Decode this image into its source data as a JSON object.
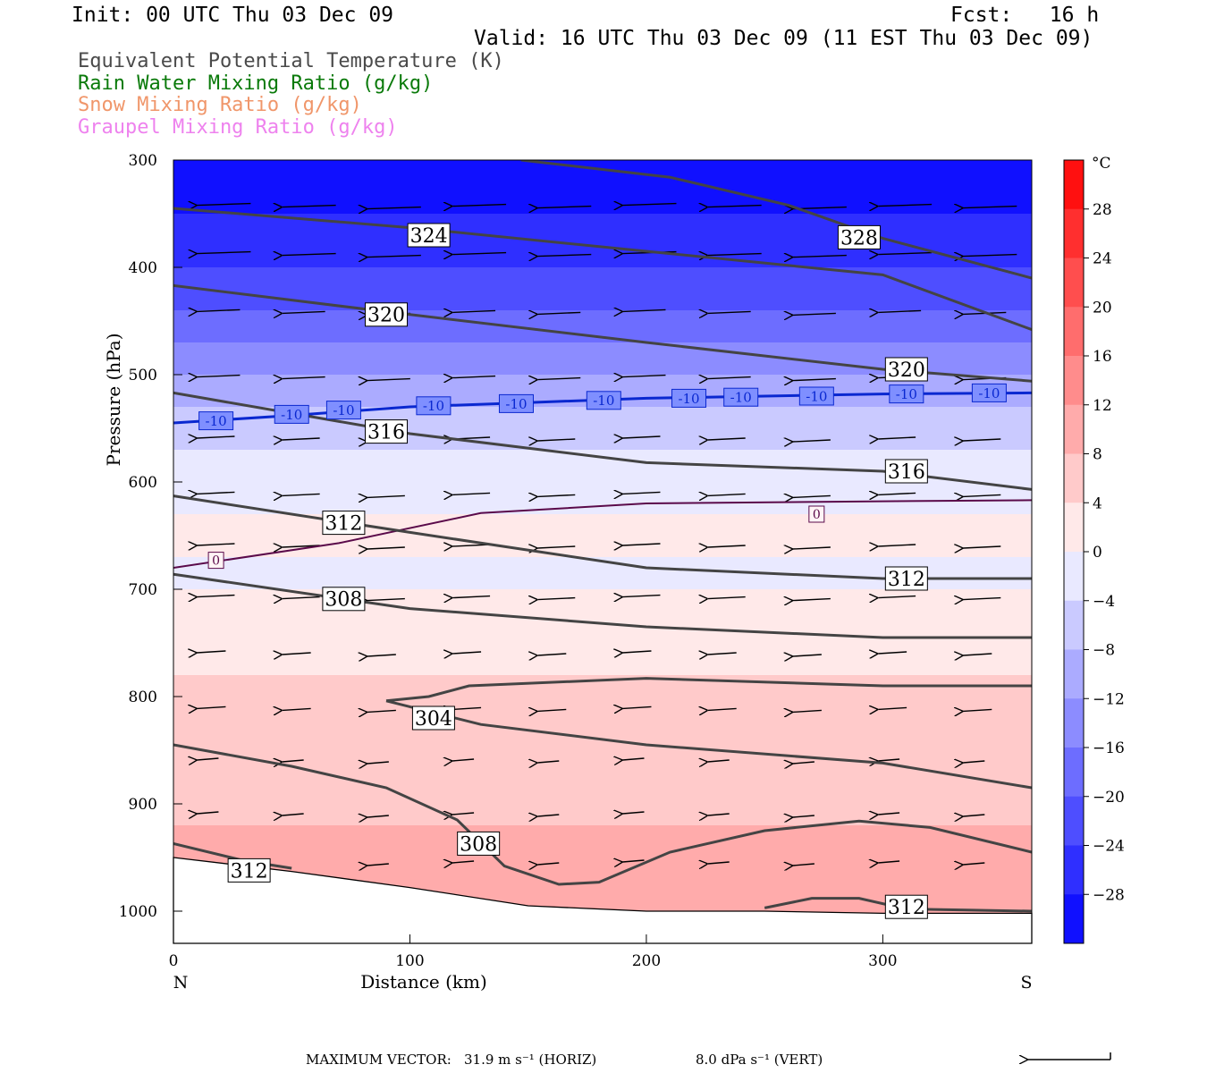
{
  "header": {
    "init": "Init: 00 UTC Thu 03 Dec 09",
    "fcst": "Fcst:   16 h",
    "valid": "Valid: 16 UTC Thu 03 Dec 09 (11 EST Thu 03 Dec 09)"
  },
  "legend": [
    {
      "label": "Equivalent Potential Temperature (K)",
      "color": "#4a4a4a"
    },
    {
      "label": "Rain Water Mixing Ratio (g/kg)",
      "color": "#0a7a0a"
    },
    {
      "label": "Snow Mixing Ratio (g/kg)",
      "color": "#f0966a"
    },
    {
      "label": "Graupel Mixing Ratio (g/kg)",
      "color": "#ee82ee"
    }
  ],
  "footer": {
    "label": "MAXIMUM VECTOR:",
    "horiz": "31.9 m s⁻¹ (HORIZ)",
    "vert": "8.0 dPa s⁻¹ (VERT)"
  },
  "chart_data": {
    "type": "heatmap",
    "xlabel": "Distance (km)",
    "ylabel": "Pressure (hPa)",
    "x_ticks": [
      0,
      100,
      200,
      300
    ],
    "y_ticks": [
      300,
      400,
      500,
      600,
      700,
      800,
      900,
      1000
    ],
    "xlim": [
      0,
      363
    ],
    "ylim": [
      300,
      1030
    ],
    "x_end_labels": {
      "left": "N",
      "right": "S"
    },
    "colorbar": {
      "unit": "°C",
      "ticks": [
        28,
        24,
        20,
        16,
        12,
        8,
        4,
        0,
        -4,
        -8,
        -12,
        -16,
        -20,
        -24,
        -28
      ],
      "range": [
        -32,
        32
      ]
    },
    "temperature_profile_c": {
      "pressures": [
        300,
        350,
        400,
        450,
        500,
        550,
        600,
        650,
        700,
        750,
        800,
        850,
        900,
        950,
        1000
      ],
      "values": [
        -33,
        -30,
        -26,
        -21,
        -14,
        -8,
        -4,
        -1,
        2,
        5,
        6.5,
        7.5,
        9,
        11.5,
        13.5
      ]
    },
    "theta_e_contours": [
      {
        "label": "328",
        "points": [
          [
            147,
            300
          ],
          [
            210,
            316
          ],
          [
            260,
            342
          ],
          [
            300,
            373
          ],
          [
            363,
            410
          ]
        ],
        "label_at": [
          290,
          372
        ]
      },
      {
        "label": "324",
        "points": [
          [
            0,
            345
          ],
          [
            100,
            363
          ],
          [
            200,
            385
          ],
          [
            300,
            407
          ],
          [
            363,
            458
          ]
        ],
        "label_at": [
          108,
          370
        ]
      },
      {
        "label": "320",
        "points": [
          [
            0,
            417
          ],
          [
            100,
            444
          ],
          [
            200,
            470
          ],
          [
            300,
            495
          ],
          [
            363,
            506
          ]
        ],
        "label_at": [
          90,
          444
        ]
      },
      {
        "label": "320",
        "points": [],
        "label_at": [
          310,
          495
        ]
      },
      {
        "label": "316",
        "points": [
          [
            0,
            517
          ],
          [
            100,
            555
          ],
          [
            200,
            582
          ],
          [
            300,
            590
          ],
          [
            363,
            607
          ]
        ],
        "label_at": [
          90,
          553
        ]
      },
      {
        "label": "316",
        "points": [],
        "label_at": [
          310,
          590
        ]
      },
      {
        "label": "312",
        "points": [
          [
            0,
            613
          ],
          [
            100,
            647
          ],
          [
            200,
            680
          ],
          [
            300,
            690
          ],
          [
            363,
            690
          ]
        ],
        "label_at": [
          72,
          638
        ]
      },
      {
        "label": "312",
        "points": [],
        "label_at": [
          310,
          690
        ]
      },
      {
        "label": "308",
        "points": [
          [
            0,
            686
          ],
          [
            100,
            718
          ],
          [
            200,
            735
          ],
          [
            300,
            745
          ],
          [
            363,
            745
          ]
        ],
        "label_at": [
          72,
          709
        ]
      },
      {
        "label": "304",
        "points": [
          [
            90,
            804
          ],
          [
            108,
            800
          ],
          [
            125,
            790
          ],
          [
            200,
            783
          ],
          [
            300,
            790
          ],
          [
            363,
            790
          ]
        ],
        "label_at": [
          110,
          820
        ]
      },
      {
        "label": "304",
        "points": [
          [
            90,
            804
          ],
          [
            130,
            826
          ],
          [
            200,
            845
          ],
          [
            300,
            862
          ],
          [
            363,
            885
          ]
        ],
        "label_at": [
          110,
          820
        ]
      },
      {
        "label": "308",
        "points": [
          [
            0,
            845
          ],
          [
            50,
            865
          ],
          [
            90,
            885
          ],
          [
            120,
            915
          ],
          [
            140,
            958
          ],
          [
            163,
            975
          ],
          [
            180,
            973
          ],
          [
            210,
            945
          ],
          [
            250,
            925
          ],
          [
            290,
            916
          ],
          [
            320,
            922
          ],
          [
            363,
            945
          ]
        ],
        "label_at": [
          129,
          937
        ]
      },
      {
        "label": "312",
        "points": [
          [
            0,
            937
          ],
          [
            30,
            953
          ],
          [
            50,
            960
          ]
        ],
        "label_at": [
          32,
          962
        ]
      },
      {
        "label": "312",
        "points": [
          [
            250,
            997
          ],
          [
            270,
            988
          ],
          [
            290,
            988
          ],
          [
            310,
            998
          ],
          [
            363,
            1000
          ]
        ],
        "label_at": [
          310,
          996
        ]
      }
    ],
    "zero_isotherm": {
      "label": "0",
      "points": [
        [
          0,
          680
        ],
        [
          70,
          657
        ],
        [
          130,
          629
        ],
        [
          200,
          620
        ],
        [
          300,
          618
        ],
        [
          363,
          617
        ]
      ],
      "label_points": [
        [
          18,
          673
        ],
        [
          272,
          630
        ]
      ]
    },
    "minus10_isotherm": {
      "label": "-10",
      "points": [
        [
          0,
          545
        ],
        [
          50,
          538
        ],
        [
          100,
          530
        ],
        [
          150,
          526
        ],
        [
          200,
          522
        ],
        [
          250,
          520
        ],
        [
          300,
          518
        ],
        [
          363,
          517
        ]
      ],
      "label_points": [
        [
          18,
          543
        ],
        [
          50,
          537
        ],
        [
          72,
          533
        ],
        [
          110,
          529
        ],
        [
          145,
          527
        ],
        [
          182,
          524
        ],
        [
          218,
          522
        ],
        [
          240,
          521
        ],
        [
          272,
          520
        ],
        [
          310,
          518
        ],
        [
          345,
          517
        ]
      ]
    }
  }
}
